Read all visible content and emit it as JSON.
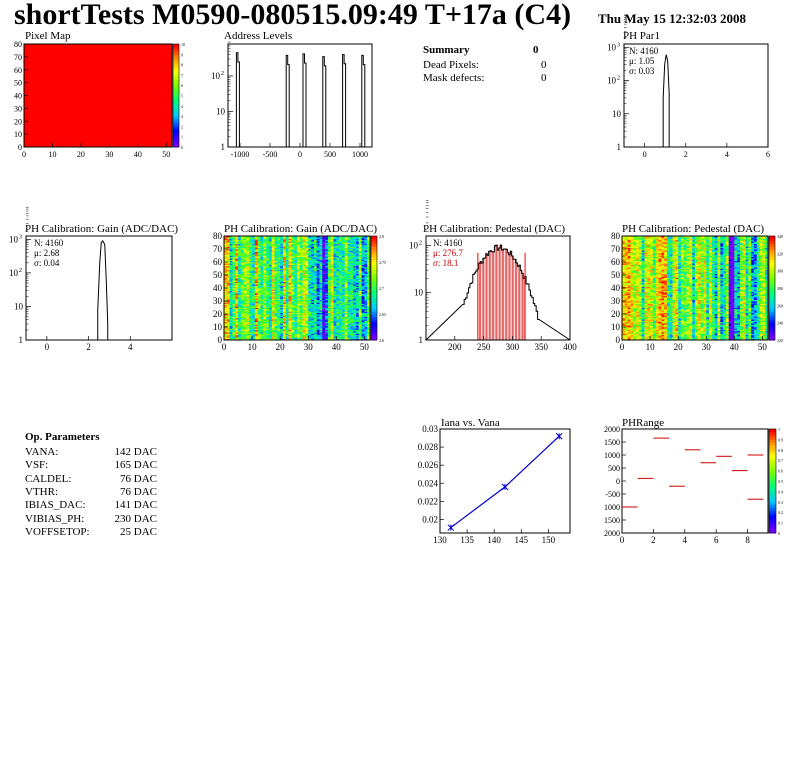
{
  "header": {
    "title": "shortTests M0590-080515.09:49 T+17a (C4)",
    "date": "Thu May 15 12:32:03 2008"
  },
  "summary": {
    "title": "Summary",
    "title_value": "0",
    "rows": [
      {
        "label": "Dead Pixels:",
        "value": "0"
      },
      {
        "label": "Mask defects:",
        "value": "0"
      }
    ]
  },
  "op_params": {
    "title": "Op. Parameters",
    "rows": [
      {
        "label": "VANA:",
        "value": "142 DAC"
      },
      {
        "label": "VSF:",
        "value": "165 DAC"
      },
      {
        "label": "CALDEL:",
        "value": "76 DAC"
      },
      {
        "label": "VTHR:",
        "value": "76 DAC"
      },
      {
        "label": "IBIAS_DAC:",
        "value": "141 DAC"
      },
      {
        "label": "VIBIAS_PH:",
        "value": "230 DAC"
      },
      {
        "label": "VOFFSETOP:",
        "value": "25 DAC"
      }
    ]
  },
  "colors": {
    "red": "#ff0000",
    "blue": "#0000cc",
    "line": "#000000"
  },
  "chart_data": [
    {
      "id": "pixel-map",
      "type": "heatmap",
      "title": "Pixel Map",
      "xlim": [
        0,
        52
      ],
      "ylim": [
        0,
        80
      ],
      "xticks": [
        "0",
        "10",
        "20",
        "30",
        "40",
        "50"
      ],
      "yticks": [
        "0",
        "10",
        "20",
        "30",
        "40",
        "50",
        "60",
        "70",
        "80"
      ],
      "uniform_value": 10,
      "zlim": [
        0,
        10
      ],
      "zticks": [
        "0",
        "1",
        "2",
        "3",
        "4",
        "5",
        "6",
        "7",
        "8",
        "9",
        "10"
      ]
    },
    {
      "id": "address-levels",
      "type": "bar",
      "title": "Address Levels",
      "xlim": [
        -1200,
        1200
      ],
      "xticks": [
        "-1000",
        "-500",
        "0",
        "500",
        "1000"
      ],
      "yscale": "log",
      "yticks": [
        "1",
        "10",
        "10^2"
      ],
      "peaks": [
        {
          "x": -1010,
          "y": 450
        },
        {
          "x": -180,
          "y": 380
        },
        {
          "x": 100,
          "y": 420
        },
        {
          "x": 430,
          "y": 350
        },
        {
          "x": 760,
          "y": 400
        },
        {
          "x": 1080,
          "y": 380
        }
      ]
    },
    {
      "id": "ph-par1",
      "type": "bar",
      "title": "PH Par1",
      "xlim": [
        -1,
        6
      ],
      "xticks": [
        "0",
        "2",
        "4",
        "6"
      ],
      "yscale": "log",
      "yticks": [
        "1",
        "10",
        "10^2",
        "10^3"
      ],
      "stats": {
        "n": "N: 4160",
        "mean": "μ: 1.05",
        "sigma": "σ: 0.03"
      },
      "peak": {
        "x": 1.05,
        "y": 600
      }
    },
    {
      "id": "ph-gain-hist",
      "type": "bar",
      "title": "PH Calibration: Gain (ADC/DAC)",
      "xlim": [
        -1,
        6
      ],
      "xticks": [
        "0",
        "2",
        "4"
      ],
      "yscale": "log",
      "yticks": [
        "1",
        "10",
        "10^2",
        "10^3"
      ],
      "stats": {
        "n": "N: 4160",
        "mean": "μ: 2.68",
        "sigma": "σ: 0.04"
      },
      "peak": {
        "x": 2.68,
        "y": 900
      }
    },
    {
      "id": "ph-gain-map",
      "type": "heatmap",
      "title": "PH Calibration: Gain (ADC/DAC)",
      "xlim": [
        0,
        52
      ],
      "ylim": [
        0,
        80
      ],
      "xticks": [
        "0",
        "10",
        "20",
        "30",
        "40",
        "50"
      ],
      "yticks": [
        "0",
        "10",
        "20",
        "30",
        "40",
        "50",
        "60",
        "70",
        "80"
      ],
      "zticks": [
        "2.6",
        "2.65",
        "2.7",
        "2.75",
        "2.8"
      ]
    },
    {
      "id": "ph-pedestal-hist",
      "type": "bar",
      "title": "PH Calibration: Pedestal (DAC)",
      "xlim": [
        150,
        400
      ],
      "xticks": [
        "200",
        "250",
        "300",
        "350",
        "400"
      ],
      "yscale": "log",
      "yticks": [
        "1",
        "10",
        "10^2"
      ],
      "stats": {
        "n": "N: 4160",
        "mean": "μ: 276.7",
        "sigma": "σ: 18.1"
      },
      "mean": 276.7,
      "sigma": 18.1,
      "cut_low": 240,
      "cut_high": 322
    },
    {
      "id": "ph-pedestal-map",
      "type": "heatmap",
      "title": "PH Calibration: Pedestal (DAC)",
      "xlim": [
        0,
        52
      ],
      "ylim": [
        0,
        80
      ],
      "xticks": [
        "0",
        "10",
        "20",
        "30",
        "40",
        "50"
      ],
      "yticks": [
        "0",
        "10",
        "20",
        "30",
        "40",
        "50",
        "60",
        "70",
        "80"
      ],
      "zticks": [
        "220",
        "240",
        "260",
        "280",
        "300",
        "320",
        "340"
      ]
    },
    {
      "id": "iana-vs-vana",
      "type": "line",
      "title": "Iana vs. Vana",
      "xlim": [
        130,
        154
      ],
      "ylim": [
        0.0185,
        0.03
      ],
      "xticks": [
        "130",
        "135",
        "140",
        "145",
        "150"
      ],
      "yticks": [
        "0.02",
        "0.022",
        "0.024",
        "0.026",
        "0.028",
        "0.03"
      ],
      "x": [
        132,
        142,
        152
      ],
      "y": [
        0.0191,
        0.0236,
        0.0292
      ]
    },
    {
      "id": "ph-range",
      "type": "bar",
      "title": "PHRange",
      "xlim": [
        0,
        9.3
      ],
      "ylim": [
        -2000,
        2000
      ],
      "xticks": [
        "0",
        "2",
        "4",
        "6",
        "8"
      ],
      "yticks": [
        "2000",
        "1500",
        "1000",
        "500",
        "0",
        "-500",
        "1000",
        "1500",
        "2000"
      ],
      "zticks": [
        "0",
        "0.1",
        "0.2",
        "0.3",
        "0.4",
        "0.5",
        "0.6",
        "0.7",
        "0.8",
        "0.9",
        "1"
      ],
      "segments": [
        {
          "x": 0.5,
          "y": -1000
        },
        {
          "x": 1.5,
          "y": 100
        },
        {
          "x": 2.5,
          "y": 1650
        },
        {
          "x": 3.5,
          "y": -200
        },
        {
          "x": 4.5,
          "y": 1200
        },
        {
          "x": 5.5,
          "y": 700
        },
        {
          "x": 6.5,
          "y": 950
        },
        {
          "x": 7.5,
          "y": 400
        },
        {
          "x": 8.5,
          "y": 1000
        },
        {
          "x": 8.5,
          "y": -700
        }
      ]
    }
  ]
}
